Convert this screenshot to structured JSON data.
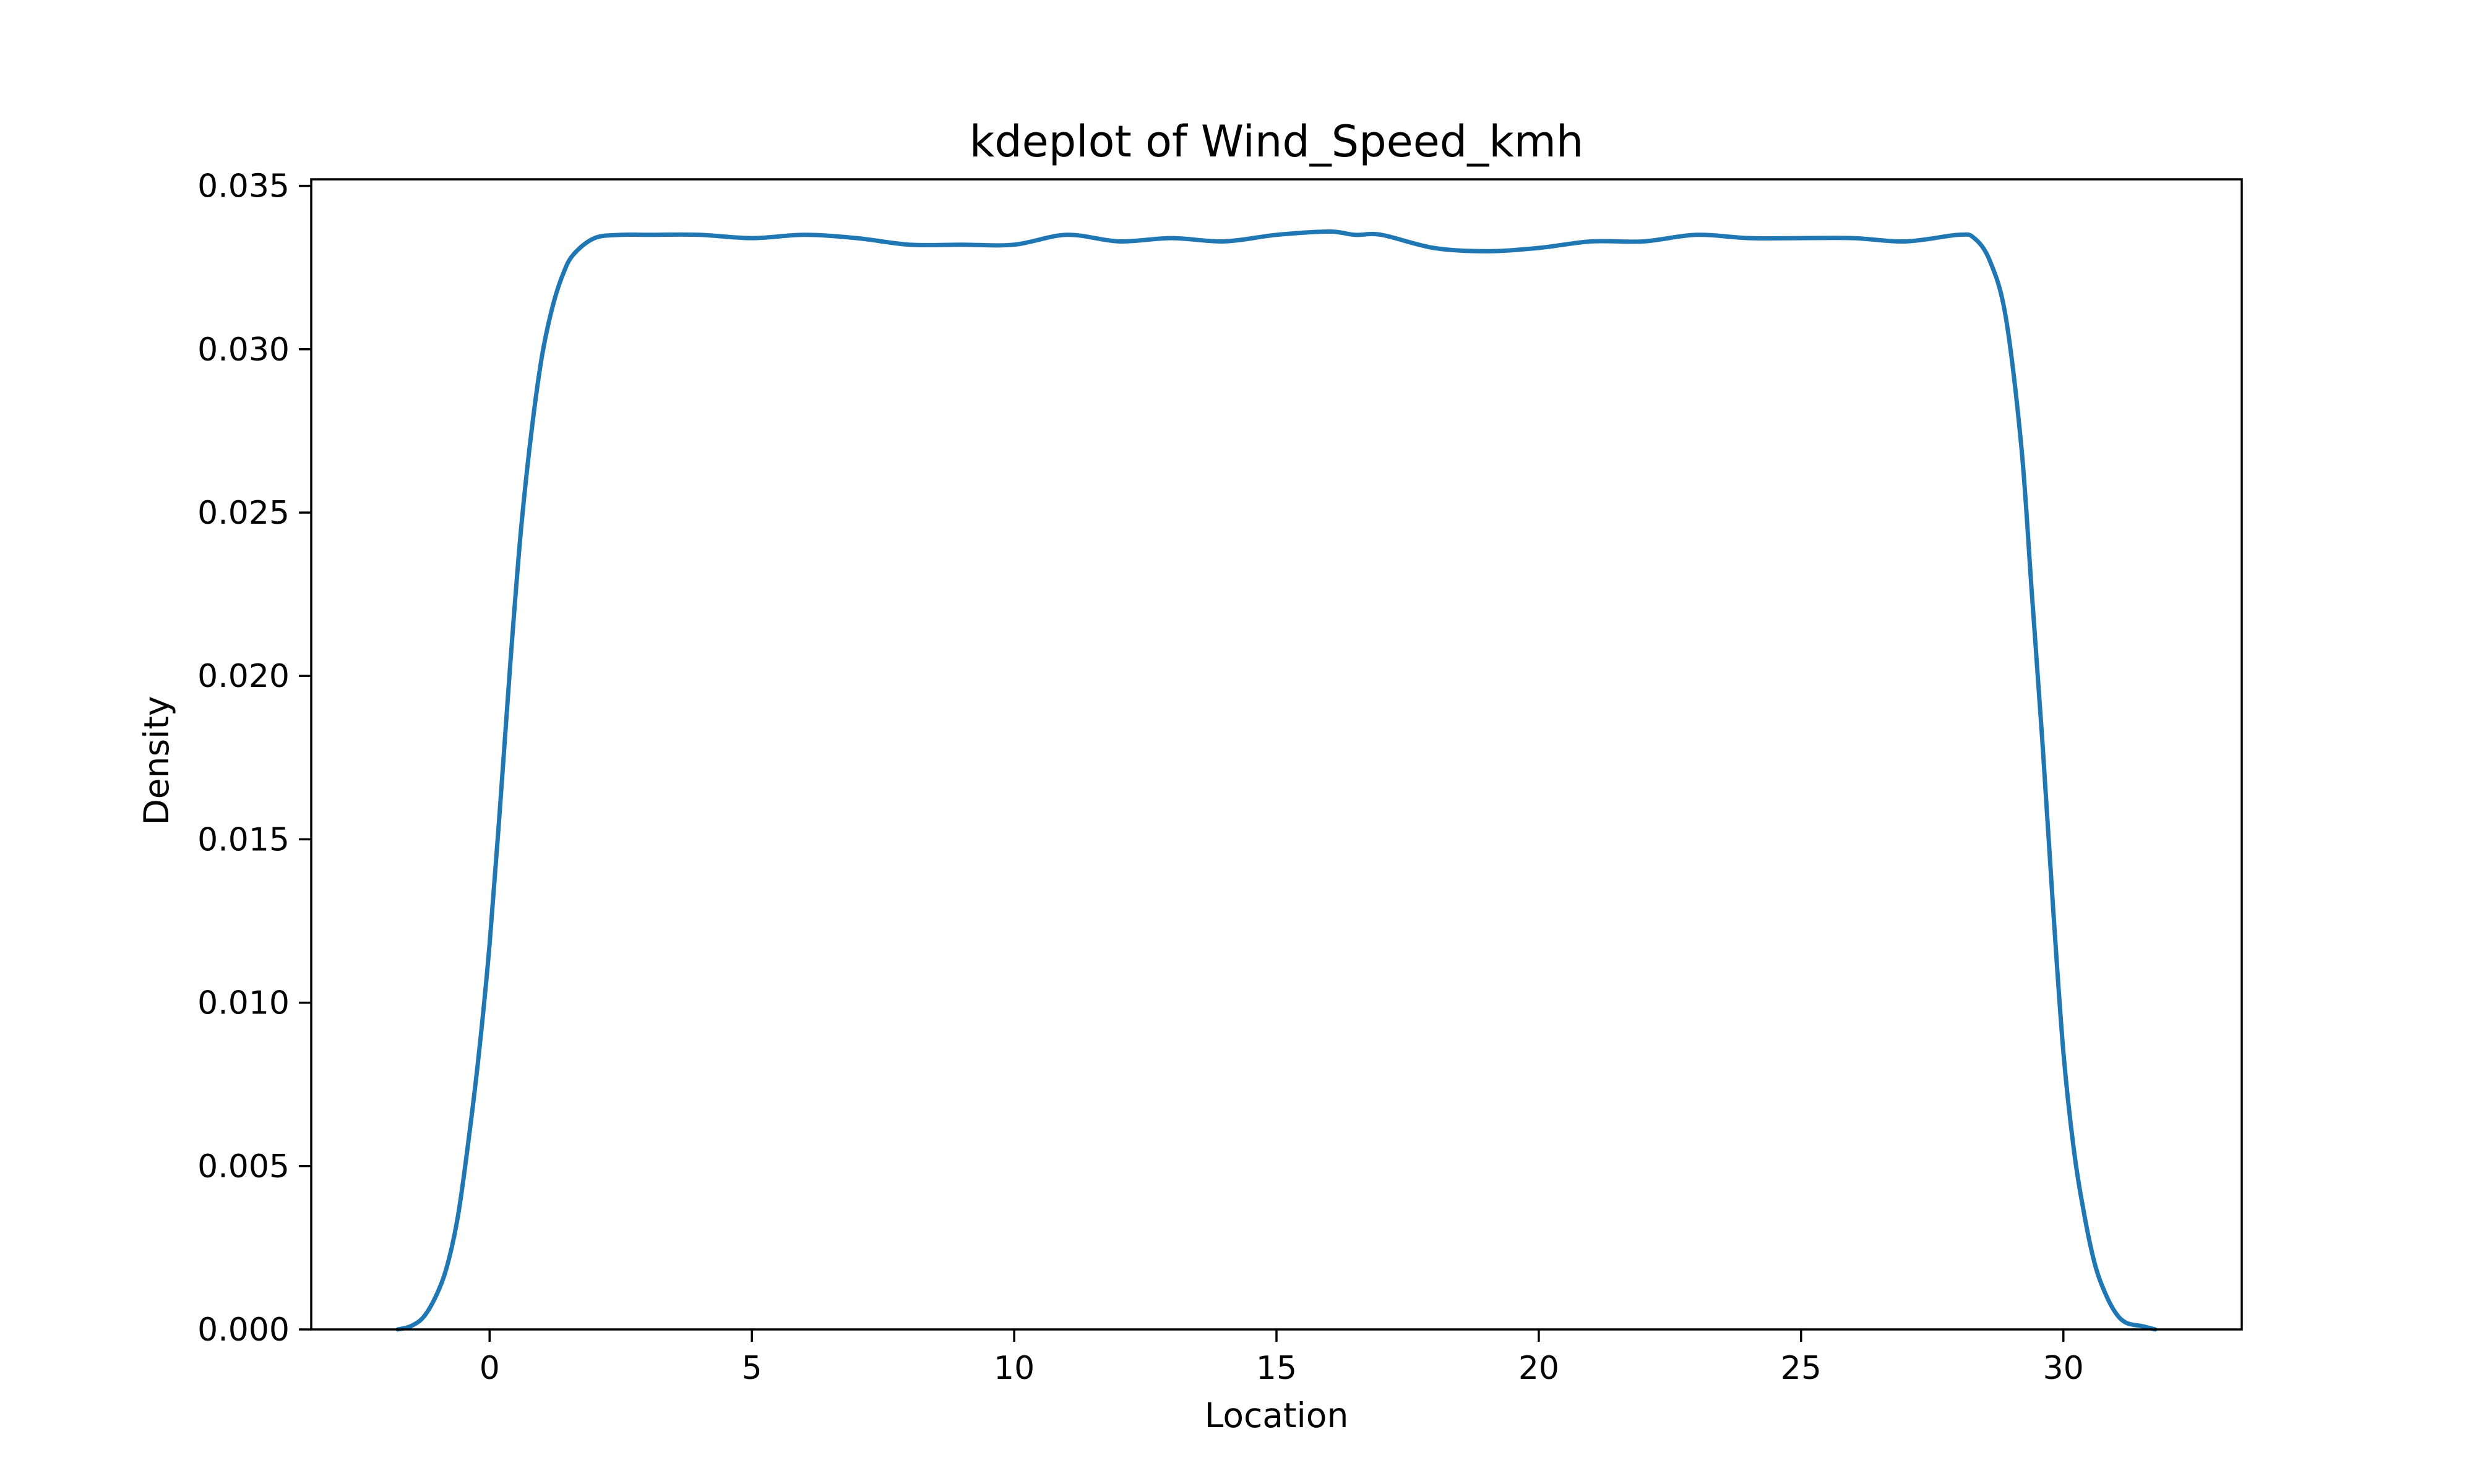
{
  "chart_data": {
    "type": "line",
    "title": "kdeplot of Wind_Speed_kmh",
    "xlabel": "Location",
    "ylabel": "Density",
    "xlim": [
      -3.4,
      33.4
    ],
    "ylim": [
      0.0,
      0.0352
    ],
    "xticks": [
      0,
      5,
      10,
      15,
      20,
      25,
      30
    ],
    "xtick_labels": [
      "0",
      "5",
      "10",
      "15",
      "20",
      "25",
      "30"
    ],
    "yticks": [
      0.0,
      0.005,
      0.01,
      0.015,
      0.02,
      0.025,
      0.03,
      0.035
    ],
    "ytick_labels": [
      "0.000",
      "0.005",
      "0.010",
      "0.015",
      "0.020",
      "0.025",
      "0.030",
      "0.035"
    ],
    "grid": false,
    "series": [
      {
        "color": "#1f77b4",
        "x": [
          -1.75,
          -1.5,
          -1.25,
          -1.0,
          -0.8,
          -0.6,
          -0.4,
          -0.2,
          0.0,
          0.2,
          0.4,
          0.6,
          0.8,
          1.0,
          1.2,
          1.4,
          1.6,
          2.0,
          2.5,
          3.0,
          4.0,
          5.0,
          6.0,
          7.0,
          8.0,
          9.0,
          10.0,
          11.0,
          12.0,
          13.0,
          14.0,
          15.0,
          16.0,
          16.5,
          17.0,
          18.0,
          19.0,
          20.0,
          21.0,
          22.0,
          23.0,
          24.0,
          25.0,
          26.0,
          27.0,
          28.0,
          28.3,
          28.6,
          28.9,
          29.2,
          29.4,
          29.6,
          29.8,
          30.0,
          30.2,
          30.4,
          30.6,
          30.8,
          31.0,
          31.2,
          31.5,
          31.75
        ],
        "y": [
          0.0,
          0.0001,
          0.0004,
          0.0011,
          0.002,
          0.0035,
          0.0058,
          0.0085,
          0.0118,
          0.016,
          0.0205,
          0.0245,
          0.0275,
          0.0298,
          0.0313,
          0.0323,
          0.0329,
          0.0334,
          0.0335,
          0.0335,
          0.0335,
          0.0334,
          0.0335,
          0.0334,
          0.0332,
          0.0332,
          0.0332,
          0.0335,
          0.0333,
          0.0334,
          0.0333,
          0.0335,
          0.0336,
          0.0335,
          0.0335,
          0.0331,
          0.033,
          0.0331,
          0.0333,
          0.0333,
          0.0335,
          0.0334,
          0.0334,
          0.0334,
          0.0333,
          0.0335,
          0.0334,
          0.0327,
          0.031,
          0.027,
          0.0225,
          0.018,
          0.013,
          0.0085,
          0.0055,
          0.0035,
          0.002,
          0.0011,
          0.0005,
          0.0002,
          0.0001,
          0.0
        ]
      }
    ]
  }
}
